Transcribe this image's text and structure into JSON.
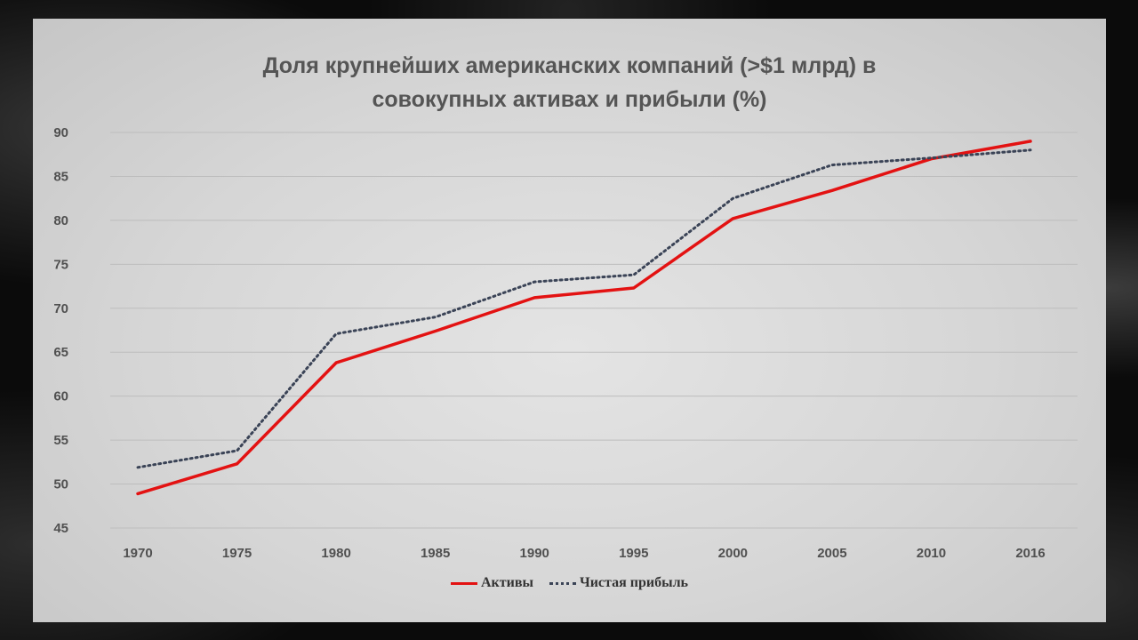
{
  "chart_data": {
    "type": "line",
    "title_line1": "Доля крупнейших американских компаний (>$1 млрд) в",
    "title_line2": "совокупных активах и прибыли (%)",
    "categories": [
      "1970",
      "1975",
      "1980",
      "1985",
      "1990",
      "1995",
      "2000",
      "2005",
      "2010",
      "2016"
    ],
    "ylim": [
      45,
      90
    ],
    "yticks": [
      45,
      50,
      55,
      60,
      65,
      70,
      75,
      80,
      85,
      90
    ],
    "grid": true,
    "legend_position": "bottom",
    "series": [
      {
        "name": "Активы",
        "color": "#e31212",
        "style": "solid",
        "values": [
          48.9,
          52.3,
          63.8,
          67.4,
          71.2,
          72.3,
          80.2,
          83.4,
          87.0,
          89.0
        ]
      },
      {
        "name": "Чистая прибыль",
        "color": "#3a4356",
        "style": "dotted",
        "values": [
          51.9,
          53.8,
          67.1,
          69.0,
          73.0,
          73.8,
          82.5,
          86.3,
          87.1,
          88.0
        ]
      }
    ]
  }
}
